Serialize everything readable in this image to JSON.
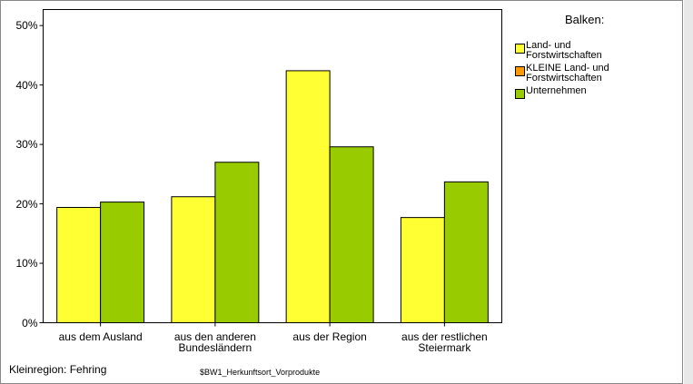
{
  "chart_data": {
    "type": "bar",
    "categories": [
      "aus dem Ausland",
      "aus den anderen\nBundesländern",
      "aus der Region",
      "aus der restlichen\nSteiermark"
    ],
    "series": [
      {
        "name": "Land- und\nForstwirtschaften",
        "color": "#ffff33",
        "values": [
          19.4,
          21.2,
          42.4,
          17.7
        ]
      },
      {
        "name": "KLEINE Land- und\nForstwirtschaften",
        "color": "#ff9900",
        "values": [
          null,
          null,
          null,
          null
        ]
      },
      {
        "name": "Unternehmen",
        "color": "#99cc00",
        "values": [
          20.3,
          27.0,
          29.6,
          23.7
        ]
      }
    ],
    "ylim": [
      0,
      52.7
    ],
    "yticks": [
      {
        "value": 0,
        "label": "0%"
      },
      {
        "value": 10,
        "label": "10%"
      },
      {
        "value": 20,
        "label": "20%"
      },
      {
        "value": 30,
        "label": "30%"
      },
      {
        "value": 40,
        "label": "40%"
      },
      {
        "value": 50,
        "label": "50%"
      }
    ],
    "legend_title": "Balken:",
    "legend_position": "right",
    "annotations": [
      "Kleinregion: Fehring",
      "$BW1_Herkunftsort_Vorprodukte"
    ]
  }
}
